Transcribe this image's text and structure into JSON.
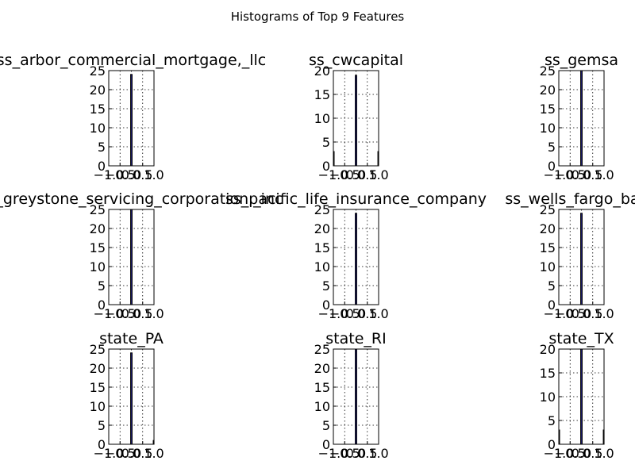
{
  "figure": {
    "suptitle": "Histograms of Top 9 Features"
  },
  "chart_data": [
    {
      "type": "bar",
      "title": "ss_arbor_commercial_mortgage,_llc",
      "xlim": [
        -1.0,
        1.0
      ],
      "ylim": [
        0,
        25
      ],
      "xticks": [
        "−1.0",
        "−0.5",
        "0.0",
        "0.5",
        "1.0"
      ],
      "yticks": [
        "0",
        "5",
        "10",
        "15",
        "20",
        "25"
      ],
      "bins": [
        {
          "x": -1.0,
          "value": 0
        },
        {
          "x": 0.0,
          "value": 24
        }
      ],
      "grid": true
    },
    {
      "type": "bar",
      "title": "ss_cwcapital",
      "xlim": [
        -1.0,
        1.0
      ],
      "ylim": [
        0,
        20
      ],
      "xticks": [
        "−1.0",
        "−0.5",
        "0.0",
        "0.5",
        "1.0"
      ],
      "yticks": [
        "0",
        "5",
        "10",
        "15",
        "20"
      ],
      "bins": [
        {
          "x": -1.0,
          "value": 3
        },
        {
          "x": 0.0,
          "value": 19
        },
        {
          "x": 1.0,
          "value": 3
        }
      ],
      "grid": true
    },
    {
      "type": "bar",
      "title": "ss_gemsa",
      "xlim": [
        -1.0,
        1.0
      ],
      "ylim": [
        0,
        25
      ],
      "xticks": [
        "−1.0",
        "−0.5",
        "0.0",
        "0.5",
        "1.0"
      ],
      "yticks": [
        "0",
        "5",
        "10",
        "15",
        "20",
        "25"
      ],
      "bins": [
        {
          "x": 0.0,
          "value": 25
        }
      ],
      "grid": true
    },
    {
      "type": "bar",
      "title": "ss_greystone_servicing_corporation,_inc",
      "xlim": [
        -1.0,
        1.0
      ],
      "ylim": [
        0,
        25
      ],
      "xticks": [
        "−1.0",
        "−0.5",
        "0.0",
        "0.5",
        "1.0"
      ],
      "yticks": [
        "0",
        "5",
        "10",
        "15",
        "20",
        "25"
      ],
      "bins": [
        {
          "x": 0.0,
          "value": 25
        }
      ],
      "grid": true
    },
    {
      "type": "bar",
      "title": "ss_pacific_life_insurance_company",
      "xlim": [
        -1.0,
        1.0
      ],
      "ylim": [
        0,
        25
      ],
      "xticks": [
        "−1.0",
        "−0.5",
        "0.0",
        "0.5",
        "1.0"
      ],
      "yticks": [
        "0",
        "5",
        "10",
        "15",
        "20",
        "25"
      ],
      "bins": [
        {
          "x": 0.0,
          "value": 24
        }
      ],
      "grid": true
    },
    {
      "type": "bar",
      "title": "ss_wells_fargo_bank",
      "xlim": [
        -1.0,
        1.0
      ],
      "ylim": [
        0,
        25
      ],
      "xticks": [
        "−1.0",
        "−0.5",
        "0.0",
        "0.5",
        "1.0"
      ],
      "yticks": [
        "0",
        "5",
        "10",
        "15",
        "20",
        "25"
      ],
      "bins": [
        {
          "x": 0.0,
          "value": 24
        }
      ],
      "grid": true
    },
    {
      "type": "bar",
      "title": "state_PA",
      "xlim": [
        -1.0,
        1.0
      ],
      "ylim": [
        0,
        25
      ],
      "xticks": [
        "−1.0",
        "−0.5",
        "0.0",
        "0.5",
        "1.0"
      ],
      "yticks": [
        "0",
        "5",
        "10",
        "15",
        "20",
        "25"
      ],
      "bins": [
        {
          "x": 0.0,
          "value": 24
        },
        {
          "x": 1.0,
          "value": 1
        }
      ],
      "grid": true
    },
    {
      "type": "bar",
      "title": "state_RI",
      "xlim": [
        -1.0,
        1.0
      ],
      "ylim": [
        0,
        25
      ],
      "xticks": [
        "−1.0",
        "−0.5",
        "0.0",
        "0.5",
        "1.0"
      ],
      "yticks": [
        "0",
        "5",
        "10",
        "15",
        "20",
        "25"
      ],
      "bins": [
        {
          "x": 0.0,
          "value": 25
        }
      ],
      "grid": true
    },
    {
      "type": "bar",
      "title": "state_TX",
      "xlim": [
        -1.0,
        1.0
      ],
      "ylim": [
        0,
        20
      ],
      "xticks": [
        "−1.0",
        "−0.5",
        "0.0",
        "0.5",
        "1.0"
      ],
      "yticks": [
        "0",
        "5",
        "10",
        "15",
        "20"
      ],
      "bins": [
        {
          "x": -1.0,
          "value": 3
        },
        {
          "x": 0.0,
          "value": 20
        },
        {
          "x": 1.0,
          "value": 3
        }
      ],
      "grid": true
    }
  ]
}
